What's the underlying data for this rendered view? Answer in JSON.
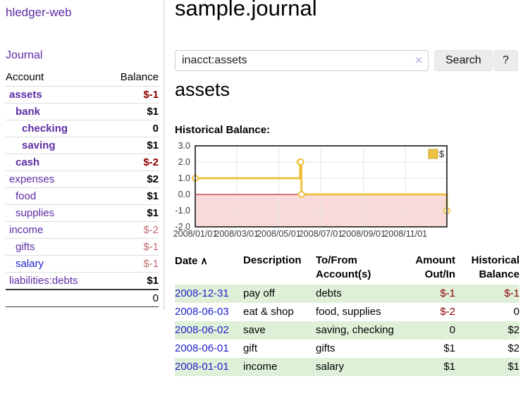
{
  "app": {
    "title": "hledger-web",
    "nav_journal": "Journal"
  },
  "colors": {
    "link_purple": "#5e2ca5",
    "link_blue": "#2222cc",
    "negative": "#8b0000",
    "negative_dim": "#c4696f",
    "row_stripe_green": "#dff0d8",
    "chart_line": "#edc240",
    "chart_negative_region": "#f9dada",
    "chart_zero_line": "#aa0000",
    "chart_border": "#444444",
    "grid_line": "#e5e5e5",
    "button_bg": "#ececec",
    "border_gray": "#cccccc",
    "clear_icon": "#c9b8e6"
  },
  "sidebar": {
    "header": {
      "account": "Account",
      "balance": "Balance"
    },
    "accounts": [
      {
        "name": "assets",
        "balance": "$-1",
        "level": 1,
        "name_style": "acct-bold",
        "bal_style": "neg-bold"
      },
      {
        "name": "bank",
        "balance": "$1",
        "level": 2,
        "name_style": "acct-bold",
        "bal_style": ""
      },
      {
        "name": "checking",
        "balance": "0",
        "level": 3,
        "name_style": "acct-bold",
        "bal_style": ""
      },
      {
        "name": "saving",
        "balance": "$1",
        "level": 3,
        "name_style": "acct-bold",
        "bal_style": ""
      },
      {
        "name": "cash",
        "balance": "$-2",
        "level": 2,
        "name_style": "acct-bold",
        "bal_style": "neg-bold"
      },
      {
        "name": "expenses",
        "balance": "$2",
        "level": 1,
        "name_style": "",
        "bal_style": ""
      },
      {
        "name": "food",
        "balance": "$1",
        "level": 2,
        "name_style": "",
        "bal_style": ""
      },
      {
        "name": "supplies",
        "balance": "$1",
        "level": 2,
        "name_style": "",
        "bal_style": ""
      },
      {
        "name": "income",
        "balance": "$-2",
        "level": 1,
        "name_style": "",
        "bal_style": "neg-dim"
      },
      {
        "name": "gifts",
        "balance": "$-1",
        "level": 2,
        "name_style": "",
        "bal_style": "neg-dim"
      },
      {
        "name": "salary",
        "balance": "$-1",
        "level": 2,
        "name_style": "acct-blue",
        "bal_style": "neg-dim"
      },
      {
        "name": "liabilities:debts",
        "balance": "$1",
        "level": 1,
        "name_style": "",
        "bal_style": ""
      }
    ],
    "total": "0"
  },
  "main": {
    "title": "sample.journal",
    "search": {
      "value": "inacct:assets",
      "clear": "×",
      "button": "Search",
      "help": "?"
    },
    "account_heading": "assets"
  },
  "chart": {
    "title": "Historical Balance:",
    "type": "line",
    "step": true,
    "legend": "$",
    "ylim": [
      -2,
      3
    ],
    "y_ticks": [
      {
        "label": "3.0",
        "value": 3
      },
      {
        "label": "2.0",
        "value": 2
      },
      {
        "label": "1.0",
        "value": 1
      },
      {
        "label": "0.0",
        "value": 0
      },
      {
        "label": "-1.0",
        "value": -1
      },
      {
        "label": "-2.0",
        "value": -2
      }
    ],
    "x_ticks": [
      {
        "label": "2008/01/01",
        "date": "2008/01/01"
      },
      {
        "label": "2008/03/01",
        "date": "2008/03/01"
      },
      {
        "label": "2008/05/01",
        "date": "2008/05/01"
      },
      {
        "label": "2008/07/01",
        "date": "2008/07/01"
      },
      {
        "label": "2008/09/01",
        "date": "2008/09/01"
      },
      {
        "label": "2008/11/01",
        "date": "2008/11/01"
      }
    ],
    "x_domain": [
      "2008/01/01",
      "2008/12/31"
    ],
    "points": [
      {
        "date": "2008/01/01",
        "value": 1
      },
      {
        "date": "2008/06/01",
        "value": 2
      },
      {
        "date": "2008/06/02",
        "value": 2
      },
      {
        "date": "2008/06/03",
        "value": 0
      },
      {
        "date": "2008/12/31",
        "value": -1
      }
    ]
  },
  "table": {
    "sort_icon": "∧",
    "headers": [
      "Date",
      "Description",
      "To/From Account(s)",
      "Amount Out/In",
      "Historical Balance"
    ],
    "rows": [
      {
        "date": "2008-12-31",
        "description": "pay off",
        "accounts": "debts",
        "amount": "$-1",
        "amount_neg": true,
        "balance": "$-1",
        "balance_neg": true
      },
      {
        "date": "2008-06-03",
        "description": "eat & shop",
        "accounts": "food, supplies",
        "amount": "$-2",
        "amount_neg": true,
        "balance": "0",
        "balance_neg": false
      },
      {
        "date": "2008-06-02",
        "description": "save",
        "accounts": "saving, checking",
        "amount": "0",
        "amount_neg": false,
        "balance": "$2",
        "balance_neg": false
      },
      {
        "date": "2008-06-01",
        "description": "gift",
        "accounts": "gifts",
        "amount": "$1",
        "amount_neg": false,
        "balance": "$2",
        "balance_neg": false
      },
      {
        "date": "2008-01-01",
        "description": "income",
        "accounts": "salary",
        "amount": "$1",
        "amount_neg": false,
        "balance": "$1",
        "balance_neg": false
      }
    ]
  }
}
